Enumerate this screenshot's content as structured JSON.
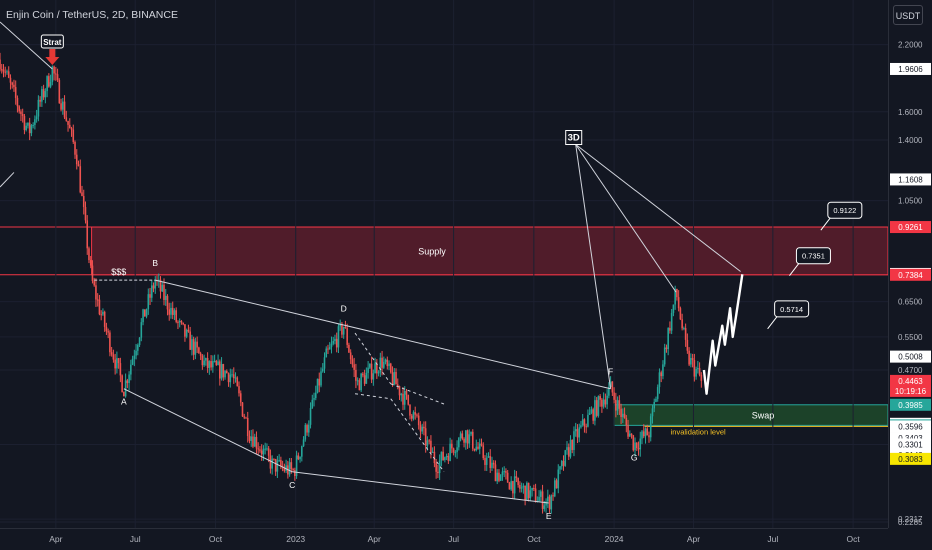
{
  "header": {
    "title": "Enjin Coin / TetherUS, 2D, BINANCE",
    "currency_button": "USDT"
  },
  "colors": {
    "background": "#131722",
    "up": "#26a69a",
    "down": "#ef5350",
    "supply_fill": "#5c1d2b",
    "supply_border": "#f23645",
    "swap_fill": "#1e4a2a",
    "invalidation": "#f7c325",
    "drawing": "#d1d4dc",
    "strat_arrow": "#e53935"
  },
  "chart_data": {
    "type": "candlestick",
    "symbol": "ENJUSDT",
    "timeframe": "2D",
    "exchange": "BINANCE",
    "y_scale": "log",
    "ylim": [
      0.2285,
      2.45
    ],
    "x_range": [
      "2022-01-27",
      "2024-11-10"
    ],
    "x_ticks": [
      {
        "date": "2022-04-01",
        "label": "Apr"
      },
      {
        "date": "2022-07-01",
        "label": "Jul"
      },
      {
        "date": "2022-10-01",
        "label": "Oct"
      },
      {
        "date": "2023-01-01",
        "label": "2023"
      },
      {
        "date": "2023-04-01",
        "label": "Apr"
      },
      {
        "date": "2023-07-01",
        "label": "Jul"
      },
      {
        "date": "2023-10-01",
        "label": "Oct"
      },
      {
        "date": "2024-01-01",
        "label": "2024"
      },
      {
        "date": "2024-04-01",
        "label": "Apr"
      },
      {
        "date": "2024-07-01",
        "label": "Jul"
      },
      {
        "date": "2024-10-01",
        "label": "Oct"
      }
    ],
    "y_ticks": [
      {
        "value": 2.2,
        "label": "2.2000"
      },
      {
        "value": 1.6,
        "label": "1.6000"
      },
      {
        "value": 1.4,
        "label": "1.4000"
      },
      {
        "value": 1.05,
        "label": "1.0500"
      },
      {
        "value": 0.65,
        "label": "0.6500"
      },
      {
        "value": 0.55,
        "label": "0.5500"
      },
      {
        "value": 0.47,
        "label": "0.4700"
      },
      {
        "value": 0.33,
        "label": "0.3301"
      },
      {
        "value": 0.2317,
        "label": "0.2317"
      },
      {
        "value": 0.2285,
        "label": "0.2285"
      }
    ],
    "price_tags": [
      {
        "value": 1.9606,
        "label": "1.9606",
        "bg": "#ffffff",
        "fg": "#131722"
      },
      {
        "value": 1.1608,
        "label": "1.1608",
        "bg": "#ffffff",
        "fg": "#131722"
      },
      {
        "value": 0.9261,
        "label": "0.9261",
        "bg": "#f23645",
        "fg": "#ffffff"
      },
      {
        "value": 0.7413,
        "label": "0.7413",
        "bg": "#ffffff",
        "fg": "#131722"
      },
      {
        "value": 0.7384,
        "label": "0.7384",
        "bg": "#f23645",
        "fg": "#ffffff"
      },
      {
        "value": 0.5008,
        "label": "0.5008",
        "bg": "#ffffff",
        "fg": "#131722"
      },
      {
        "value": 0.4463,
        "label": "0.4463",
        "label2": "10:19:16",
        "bg": "#f23645",
        "fg": "#ffffff"
      },
      {
        "value": 0.3985,
        "label": "0.3985",
        "bg": "#26a69a",
        "fg": "#ffffff"
      },
      {
        "value": 0.3641,
        "label": "0.3641",
        "bg": "#ffffff",
        "fg": "#131722"
      },
      {
        "value": 0.3614,
        "label": "0.3614",
        "bg": "#26a69a",
        "fg": "#ffffff"
      },
      {
        "value": 0.3596,
        "label": "0.3596",
        "bg": "#ffffff",
        "fg": "#131722"
      },
      {
        "value": 0.3403,
        "label": "0.3403",
        "bg": "#ffffff",
        "fg": "#131722"
      },
      {
        "value": 0.3301,
        "label": "0.3301",
        "bg": "#ffffff",
        "fg": "#131722"
      },
      {
        "value": 0.3143,
        "label": "0.3143",
        "bg": "#ffffff",
        "fg": "#131722"
      },
      {
        "value": 0.3083,
        "label": "0.3083",
        "bg": "#f7e600",
        "fg": "#131722"
      }
    ],
    "anchors": [
      {
        "date": "2022-01-27",
        "value": 2.05
      },
      {
        "date": "2022-03-01",
        "value": 1.45
      },
      {
        "date": "2022-03-28",
        "value": 1.96
      },
      {
        "date": "2022-04-25",
        "value": 1.3
      },
      {
        "date": "2022-05-12",
        "value": 0.72
      },
      {
        "date": "2022-05-22",
        "value": 0.62
      },
      {
        "date": "2022-06-18",
        "value": 0.43
      },
      {
        "date": "2022-07-10",
        "value": 0.6
      },
      {
        "date": "2022-07-24",
        "value": 0.72
      },
      {
        "date": "2022-08-20",
        "value": 0.58
      },
      {
        "date": "2022-09-20",
        "value": 0.48
      },
      {
        "date": "2022-10-20",
        "value": 0.46
      },
      {
        "date": "2022-11-09",
        "value": 0.35
      },
      {
        "date": "2022-12-05",
        "value": 0.3
      },
      {
        "date": "2022-12-30",
        "value": 0.29
      },
      {
        "date": "2023-02-05",
        "value": 0.5
      },
      {
        "date": "2023-02-25",
        "value": 0.58
      },
      {
        "date": "2023-03-12",
        "value": 0.44
      },
      {
        "date": "2023-04-10",
        "value": 0.49
      },
      {
        "date": "2023-05-10",
        "value": 0.4
      },
      {
        "date": "2023-06-12",
        "value": 0.3
      },
      {
        "date": "2023-07-14",
        "value": 0.35
      },
      {
        "date": "2023-08-18",
        "value": 0.29
      },
      {
        "date": "2023-09-12",
        "value": 0.27
      },
      {
        "date": "2023-10-18",
        "value": 0.25
      },
      {
        "date": "2023-11-12",
        "value": 0.33
      },
      {
        "date": "2023-12-05",
        "value": 0.38
      },
      {
        "date": "2023-12-28",
        "value": 0.43
      },
      {
        "date": "2024-01-24",
        "value": 0.33
      },
      {
        "date": "2024-02-10",
        "value": 0.35
      },
      {
        "date": "2024-03-12",
        "value": 0.68
      },
      {
        "date": "2024-03-25",
        "value": 0.5
      },
      {
        "date": "2024-04-11",
        "value": 0.4463
      }
    ],
    "zones": [
      {
        "name": "Supply",
        "label": "Supply",
        "from_date": "2022-05-12",
        "top": 0.9261,
        "bottom": 0.7384,
        "fill": "#5c1d2b",
        "border": "#f23645",
        "full_width": true
      },
      {
        "name": "Swap",
        "label": "Swap",
        "from_date": "2024-01-01",
        "top": 0.3985,
        "bottom": 0.3614,
        "fill": "#1e4a2a",
        "border": "#26a69a",
        "full_width": false
      }
    ],
    "invalidation": {
      "label": "invalidation level",
      "value": 0.3596,
      "from_date": "2024-02-05"
    },
    "wave_points": [
      {
        "label": "A",
        "date": "2022-06-18",
        "value": 0.43,
        "pos": "below"
      },
      {
        "label": "B",
        "date": "2022-07-24",
        "value": 0.72,
        "pos": "above"
      },
      {
        "label": "C",
        "date": "2022-12-28",
        "value": 0.29,
        "pos": "below"
      },
      {
        "label": "D",
        "date": "2023-02-25",
        "value": 0.58,
        "pos": "above"
      },
      {
        "label": "E",
        "date": "2023-10-18",
        "value": 0.25,
        "pos": "below"
      },
      {
        "label": "F",
        "date": "2023-12-28",
        "value": 0.43,
        "pos": "above"
      },
      {
        "label": "G",
        "date": "2024-01-24",
        "value": 0.33,
        "pos": "below"
      }
    ],
    "trendlines": [
      {
        "from": {
          "date": "2022-07-24",
          "value": 0.72
        },
        "to": {
          "date": "2023-12-28",
          "value": 0.43
        }
      },
      {
        "from": {
          "date": "2022-06-18",
          "value": 0.43
        },
        "to": {
          "date": "2022-12-28",
          "value": 0.29
        }
      },
      {
        "from": {
          "date": "2022-12-28",
          "value": 0.29
        },
        "to": {
          "date": "2023-10-18",
          "value": 0.25
        }
      },
      {
        "from": {
          "date": "2022-01-27",
          "value": 2.45
        },
        "to": {
          "date": "2022-03-28",
          "value": 1.96
        }
      },
      {
        "from": {
          "date": "2022-01-27",
          "value": 1.12
        },
        "to": {
          "date": "2022-02-12",
          "value": 1.2
        }
      }
    ],
    "dashed_channel": [
      {
        "from": {
          "date": "2023-03-10",
          "value": 0.56
        },
        "to": {
          "date": "2023-04-20",
          "value": 0.44
        }
      },
      {
        "from": {
          "date": "2023-03-10",
          "value": 0.42
        },
        "to": {
          "date": "2023-04-20",
          "value": 0.41
        }
      },
      {
        "from": {
          "date": "2023-04-20",
          "value": 0.44
        },
        "to": {
          "date": "2023-06-20",
          "value": 0.4
        }
      },
      {
        "from": {
          "date": "2023-04-20",
          "value": 0.41
        },
        "to": {
          "date": "2023-06-20",
          "value": 0.29
        }
      }
    ],
    "liquidity_line": {
      "label": "$$$",
      "from_date": "2022-05-15",
      "to_date": "2022-07-24",
      "value": 0.72
    },
    "fan": {
      "label": "3D",
      "apex": {
        "date": "2023-11-18",
        "value": 1.37
      },
      "targets": [
        {
          "date": "2023-12-28",
          "value": 0.43
        },
        {
          "date": "2024-03-12",
          "value": 0.68
        },
        {
          "date": "2024-05-25",
          "value": 0.75
        }
      ]
    },
    "projection": [
      {
        "date": "2024-04-13",
        "value": 0.47
      },
      {
        "date": "2024-04-16",
        "value": 0.42
      },
      {
        "date": "2024-04-23",
        "value": 0.54
      },
      {
        "date": "2024-04-26",
        "value": 0.48
      },
      {
        "date": "2024-05-04",
        "value": 0.58
      },
      {
        "date": "2024-05-07",
        "value": 0.53
      },
      {
        "date": "2024-05-13",
        "value": 0.63
      },
      {
        "date": "2024-05-16",
        "value": 0.55
      },
      {
        "date": "2024-05-20",
        "value": 0.61
      },
      {
        "date": "2024-05-27",
        "value": 0.74
      }
    ],
    "callouts": [
      {
        "label": "0.9122",
        "value": 0.9122,
        "date": "2024-08-25"
      },
      {
        "label": "0.7351",
        "value": 0.7351,
        "date": "2024-07-20"
      },
      {
        "label": "0.5714",
        "value": 0.5714,
        "date": "2024-06-25"
      }
    ],
    "strat": {
      "label": "Strat",
      "date": "2022-03-28",
      "value": 1.96
    }
  }
}
